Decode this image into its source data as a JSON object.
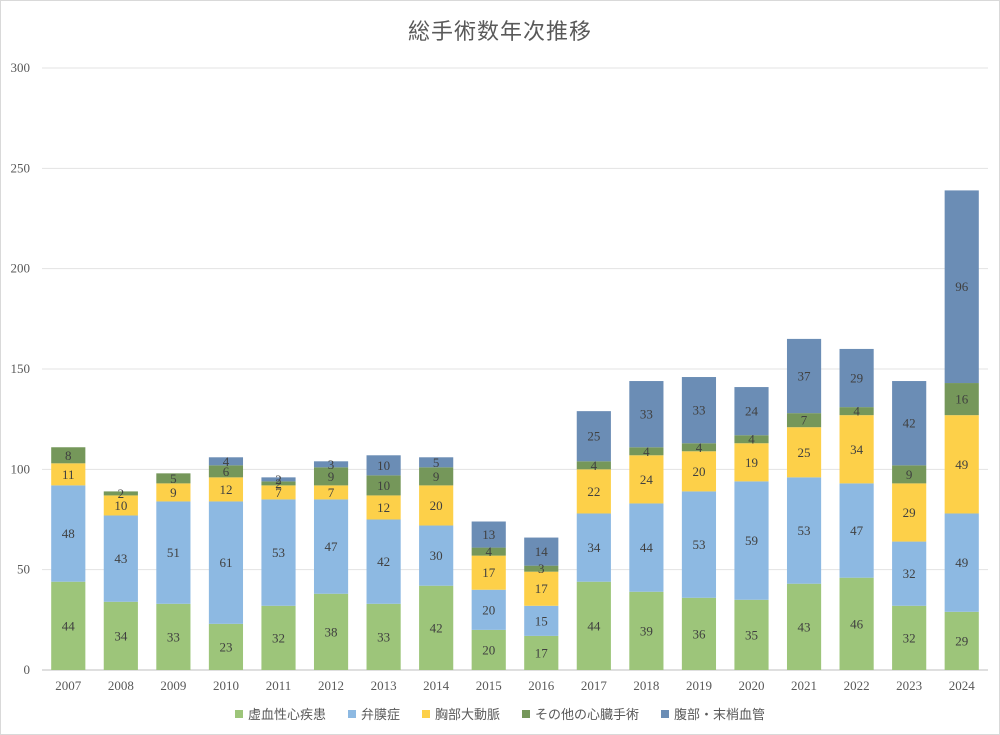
{
  "chart_data": {
    "type": "bar",
    "stacked": true,
    "title": "総手術数年次推移",
    "xlabel": "",
    "ylabel": "",
    "ylim": [
      0,
      300
    ],
    "yticks": [
      0,
      50,
      100,
      150,
      200,
      250,
      300
    ],
    "grid": true,
    "legend_position": "bottom",
    "categories": [
      "2007",
      "2008",
      "2009",
      "2010",
      "2011",
      "2012",
      "2013",
      "2014",
      "2015",
      "2016",
      "2017",
      "2018",
      "2019",
      "2020",
      "2021",
      "2022",
      "2023",
      "2024"
    ],
    "series": [
      {
        "name": "虚血性心疾患",
        "color": "#9dc57a",
        "values": [
          44,
          34,
          33,
          23,
          32,
          38,
          33,
          42,
          20,
          17,
          44,
          39,
          36,
          35,
          43,
          46,
          32,
          29
        ]
      },
      {
        "name": "弁膜症",
        "color": "#8db9e2",
        "values": [
          48,
          43,
          51,
          61,
          53,
          47,
          42,
          30,
          20,
          15,
          34,
          44,
          53,
          59,
          53,
          47,
          32,
          49
        ]
      },
      {
        "name": "胸部大動脈",
        "color": "#fdd049",
        "values": [
          11,
          10,
          9,
          12,
          7,
          7,
          12,
          20,
          17,
          17,
          22,
          24,
          20,
          19,
          25,
          34,
          29,
          49
        ]
      },
      {
        "name": "その他の心臓手術",
        "color": "#75975a",
        "values": [
          8,
          2,
          5,
          6,
          2,
          9,
          10,
          9,
          4,
          3,
          4,
          4,
          4,
          4,
          7,
          4,
          9,
          16
        ]
      },
      {
        "name": "腹部・末梢血管",
        "color": "#6b8db5",
        "values": [
          0,
          0,
          0,
          4,
          2,
          3,
          10,
          5,
          13,
          14,
          25,
          33,
          33,
          24,
          37,
          29,
          42,
          96
        ]
      }
    ]
  }
}
